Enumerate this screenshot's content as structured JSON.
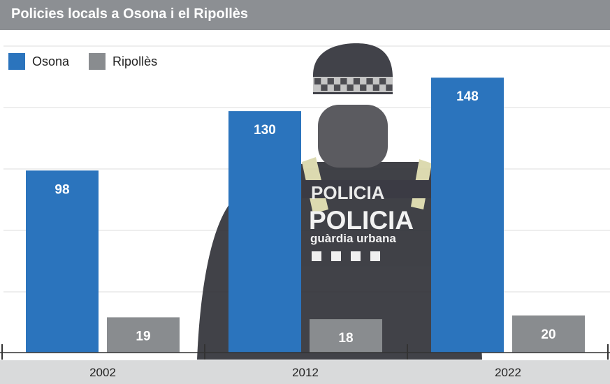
{
  "title": "Policies locals a Osona i el Ripollès",
  "photo": {
    "patch_text": "POLICIA",
    "patch_subtext": "guàrdia urbana"
  },
  "colors": {
    "title_bg": "#8c8f93",
    "osona": "#2b74bd",
    "ripolles": "#898c8f",
    "axis_band": "#d9dadb",
    "grid": "#dddddd"
  },
  "chart_data": {
    "type": "bar",
    "title": "Policies locals a Osona i el Ripollès",
    "categories": [
      "2002",
      "2012",
      "2022"
    ],
    "series": [
      {
        "name": "Osona",
        "values": [
          98,
          130,
          148
        ]
      },
      {
        "name": "Ripollès",
        "values": [
          19,
          18,
          20
        ]
      }
    ],
    "ylim": [
      0,
      165
    ],
    "grid": true,
    "legend_position": "top-left"
  }
}
